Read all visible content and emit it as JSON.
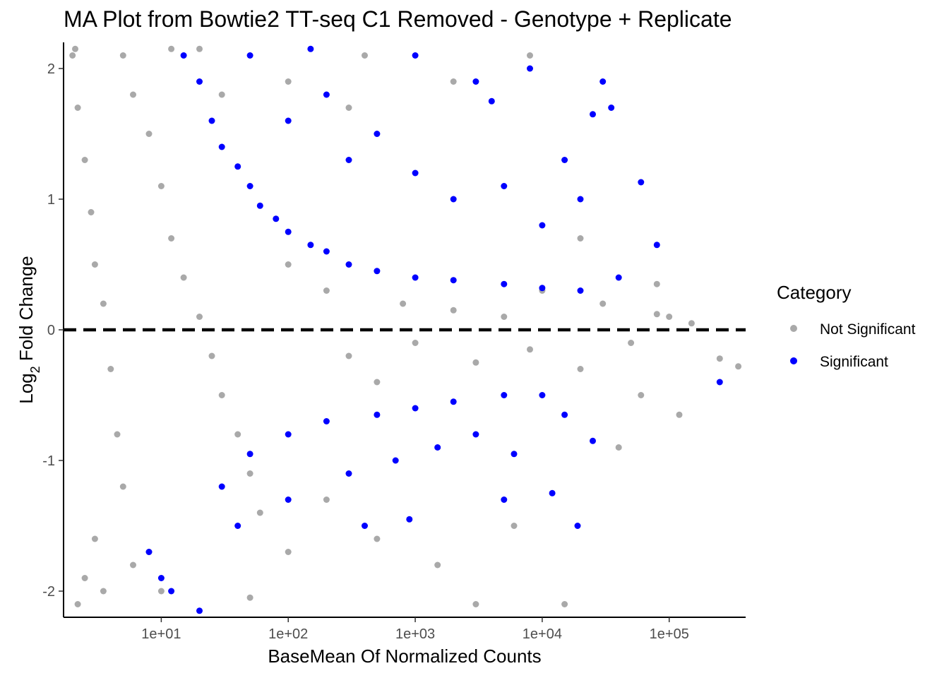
{
  "chart_data": {
    "type": "scatter",
    "title": "MA Plot from Bowtie2 TT-seq C1 Removed - Genotype + Replicate",
    "xlabel": "BaseMean Of Normalized Counts",
    "ylabel_main": "Log",
    "ylabel_sub": "2",
    "ylabel_rest": " Fold Change",
    "x_scale": "log10",
    "xlim": [
      1.7,
      400000
    ],
    "ylim": [
      -2.2,
      2.2
    ],
    "x_ticks": [
      {
        "value": 10,
        "label": "1e+01"
      },
      {
        "value": 100,
        "label": "1e+02"
      },
      {
        "value": 1000,
        "label": "1e+03"
      },
      {
        "value": 10000,
        "label": "1e+04"
      },
      {
        "value": 100000,
        "label": "1e+05"
      }
    ],
    "y_ticks": [
      {
        "value": 2,
        "label": "2"
      },
      {
        "value": 1,
        "label": "1"
      },
      {
        "value": 0,
        "label": "0"
      },
      {
        "value": -1,
        "label": "-1"
      },
      {
        "value": -2,
        "label": "-2"
      }
    ],
    "reference_line": {
      "y": 0,
      "style": "dashed",
      "color": "#000000"
    },
    "grid": false,
    "legend": {
      "title": "Category",
      "position": "right",
      "entries": [
        {
          "label": "Not Significant",
          "color": "#a9a9a9"
        },
        {
          "label": "Significant",
          "color": "#0000ff"
        }
      ]
    },
    "series": [
      {
        "name": "Not Significant",
        "color": "#a9a9a9",
        "points": [
          [
            2.0,
            2.1
          ],
          [
            2.2,
            1.7
          ],
          [
            2.5,
            1.3
          ],
          [
            2.8,
            0.9
          ],
          [
            3.0,
            0.5
          ],
          [
            3.5,
            0.2
          ],
          [
            4.0,
            -0.3
          ],
          [
            4.5,
            -0.8
          ],
          [
            5.0,
            -1.2
          ],
          [
            3.0,
            -1.6
          ],
          [
            2.5,
            -1.9
          ],
          [
            2.2,
            -2.1
          ],
          [
            6.0,
            1.8
          ],
          [
            8.0,
            1.5
          ],
          [
            10,
            1.1
          ],
          [
            12,
            0.7
          ],
          [
            15,
            0.4
          ],
          [
            20,
            0.1
          ],
          [
            25,
            -0.2
          ],
          [
            30,
            -0.5
          ],
          [
            40,
            -0.8
          ],
          [
            50,
            -1.1
          ],
          [
            60,
            -1.4
          ],
          [
            8,
            -1.7
          ],
          [
            10,
            -2.0
          ],
          [
            20,
            2.15
          ],
          [
            30,
            1.8
          ],
          [
            2.1,
            2.15
          ],
          [
            5.0,
            2.1
          ],
          [
            12,
            2.15
          ],
          [
            3.5,
            -2.0
          ],
          [
            6.0,
            -1.8
          ],
          [
            100,
            0.5
          ],
          [
            200,
            0.3
          ],
          [
            300,
            -0.2
          ],
          [
            500,
            -0.4
          ],
          [
            800,
            0.2
          ],
          [
            1000,
            -0.1
          ],
          [
            2000,
            0.15
          ],
          [
            3000,
            -0.25
          ],
          [
            5000,
            0.1
          ],
          [
            8000,
            -0.15
          ],
          [
            10000,
            0.3
          ],
          [
            20000,
            -0.3
          ],
          [
            30000,
            0.2
          ],
          [
            50000,
            -0.1
          ],
          [
            80000,
            0.12
          ],
          [
            100000,
            0.1
          ],
          [
            150000,
            0.05
          ],
          [
            250000,
            -0.22
          ],
          [
            350000,
            -0.28
          ],
          [
            120000,
            -0.65
          ],
          [
            80000,
            0.35
          ],
          [
            60000,
            -0.5
          ],
          [
            40000,
            -0.9
          ],
          [
            200,
            -1.3
          ],
          [
            500,
            -1.6
          ],
          [
            1500,
            -1.8
          ],
          [
            3000,
            -2.1
          ],
          [
            6000,
            -1.5
          ],
          [
            15000,
            -2.1
          ],
          [
            400,
            2.1
          ],
          [
            8000,
            2.1
          ],
          [
            2000,
            1.9
          ],
          [
            100,
            1.9
          ],
          [
            300,
            1.7
          ],
          [
            50,
            -2.05
          ],
          [
            20000,
            0.7
          ],
          [
            100,
            -1.7
          ]
        ]
      },
      {
        "name": "Significant",
        "color": "#0000ff",
        "points": [
          [
            15,
            2.1
          ],
          [
            20,
            1.9
          ],
          [
            25,
            1.6
          ],
          [
            30,
            1.4
          ],
          [
            40,
            1.25
          ],
          [
            50,
            1.1
          ],
          [
            60,
            0.95
          ],
          [
            80,
            0.85
          ],
          [
            100,
            0.75
          ],
          [
            150,
            0.65
          ],
          [
            200,
            0.6
          ],
          [
            300,
            0.5
          ],
          [
            500,
            0.45
          ],
          [
            1000,
            0.4
          ],
          [
            2000,
            0.38
          ],
          [
            5000,
            0.35
          ],
          [
            10000,
            0.32
          ],
          [
            20000,
            0.3
          ],
          [
            40000,
            0.4
          ],
          [
            60000,
            1.13
          ],
          [
            80000,
            0.65
          ],
          [
            100,
            1.6
          ],
          [
            200,
            1.8
          ],
          [
            300,
            1.3
          ],
          [
            500,
            1.5
          ],
          [
            1000,
            1.2
          ],
          [
            2000,
            1.0
          ],
          [
            5000,
            1.1
          ],
          [
            10000,
            0.8
          ],
          [
            3000,
            1.9
          ],
          [
            8000,
            2.0
          ],
          [
            25000,
            1.65
          ],
          [
            35000,
            1.7
          ],
          [
            30000,
            1.9
          ],
          [
            50,
            2.1
          ],
          [
            150,
            2.15
          ],
          [
            1000,
            2.1
          ],
          [
            4000,
            1.75
          ],
          [
            15000,
            1.3
          ],
          [
            20000,
            1.0
          ],
          [
            30,
            -1.2
          ],
          [
            50,
            -0.95
          ],
          [
            100,
            -0.8
          ],
          [
            200,
            -0.7
          ],
          [
            500,
            -0.65
          ],
          [
            1000,
            -0.6
          ],
          [
            2000,
            -0.55
          ],
          [
            5000,
            -0.5
          ],
          [
            10000,
            -0.5
          ],
          [
            15000,
            -0.65
          ],
          [
            25000,
            -0.85
          ],
          [
            8,
            -1.7
          ],
          [
            10,
            -1.9
          ],
          [
            12,
            -2.0
          ],
          [
            20,
            -2.15
          ],
          [
            40,
            -1.5
          ],
          [
            100,
            -1.3
          ],
          [
            300,
            -1.1
          ],
          [
            700,
            -1.0
          ],
          [
            1500,
            -0.9
          ],
          [
            3000,
            -0.8
          ],
          [
            400,
            -1.5
          ],
          [
            5000,
            -1.3
          ],
          [
            12000,
            -1.25
          ],
          [
            900,
            -1.45
          ],
          [
            250000,
            -0.4
          ],
          [
            19000,
            -1.5
          ],
          [
            6000,
            -0.95
          ]
        ]
      }
    ]
  }
}
